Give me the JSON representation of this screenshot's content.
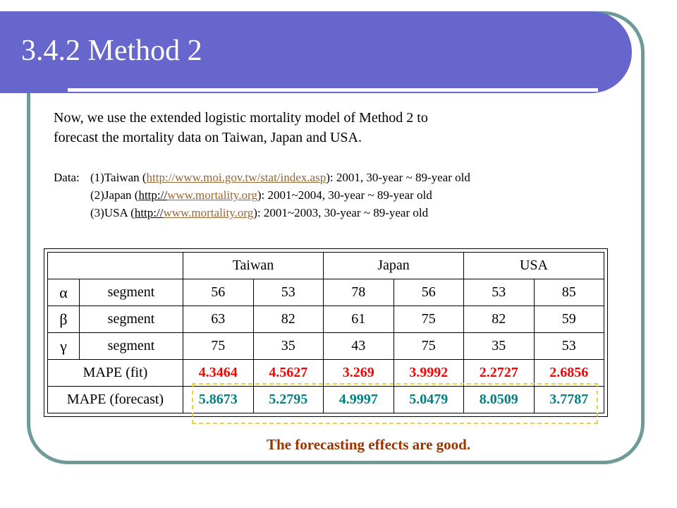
{
  "slide": {
    "title": "3.4.2 Method 2",
    "intro_lines": [
      "Now, we use the extended logistic mortality model of Method 2 to",
      "forecast the mortality data on Taiwan, Japan and USA."
    ],
    "data_label": "Data:",
    "data_sources": [
      {
        "prefix": "(1)Taiwan (",
        "link": "http://www.moi.gov.tw/stat/index.asp",
        "suffix": "):  2001, 30-year ~ 89-year old"
      },
      {
        "prefix": "(2)Japan (",
        "link_plain": "http://",
        "link": "www.mortality.org",
        "suffix": "):  2001~2004, 30-year ~ 89-year old"
      },
      {
        "prefix": "(3)USA (",
        "link_plain": "http://",
        "link": "www.mortality.org",
        "suffix": "):  2001~2003, 30-year ~ 89-year old"
      }
    ],
    "conclusion": "The forecasting effects are good."
  },
  "table": {
    "headers": [
      "Taiwan",
      "Japan",
      "USA"
    ],
    "param_rows": [
      {
        "symbol": "α",
        "label": "segment",
        "values": [
          "56",
          "53",
          "78",
          "56",
          "53",
          "85"
        ]
      },
      {
        "symbol": "β",
        "label": "segment",
        "values": [
          "63",
          "82",
          "61",
          "75",
          "82",
          "59"
        ]
      },
      {
        "symbol": "γ",
        "label": "segment",
        "values": [
          "75",
          "35",
          "43",
          "75",
          "35",
          "53"
        ]
      }
    ],
    "mape_fit": {
      "label": "MAPE (fit)",
      "values": [
        "4.3464",
        "4.5627",
        "3.269",
        "3.9992",
        "2.2727",
        "2.6856"
      ]
    },
    "mape_forecast": {
      "label": "MAPE (forecast)",
      "values": [
        "5.8673",
        "5.2795",
        "4.9997",
        "5.0479",
        "8.0509",
        "3.7787"
      ]
    }
  },
  "colors": {
    "title_bar": "#6666cc",
    "frame": "#6e9a9a",
    "fit_values": "#ff0000",
    "forecast_values": "#008080",
    "conclusion": "#993300",
    "highlight_box": "#e8d33a"
  }
}
